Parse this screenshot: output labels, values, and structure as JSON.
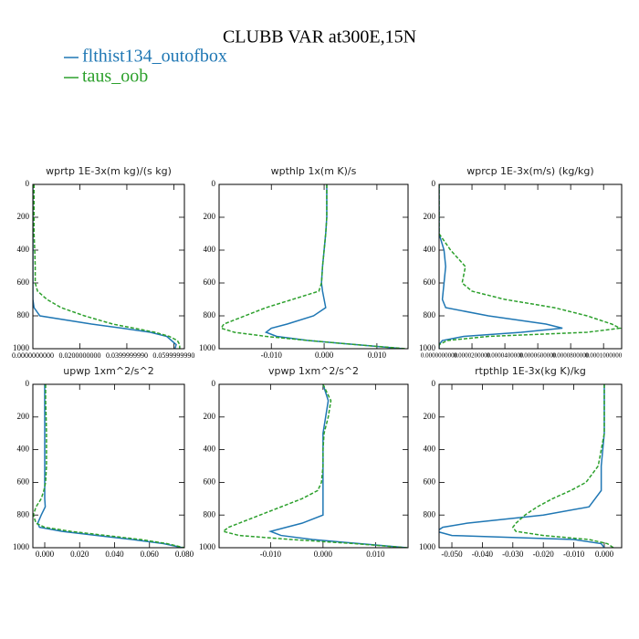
{
  "title": "CLUBB VAR at300E,15N",
  "legend": [
    {
      "name": "flthist134_outofbox",
      "color": "#1f77b4"
    },
    {
      "name": "taus_oob",
      "color": "#2ca02c"
    }
  ],
  "chart_data": [
    {
      "type": "line",
      "title": "wprtp  1E-3x(m kg)/(s kg)",
      "y": [
        0,
        100,
        200,
        300,
        400,
        500,
        600,
        650,
        700,
        750,
        800,
        850,
        875,
        900,
        925,
        950,
        975,
        1000
      ],
      "ylim": [
        0,
        1000
      ],
      "y_inverted": true,
      "yticks": [
        0,
        200,
        400,
        600,
        800,
        1000
      ],
      "xlim": [
        0,
        0.0645
      ],
      "xticks": [
        {
          "value": 0,
          "label": "0.0000000000"
        },
        {
          "value": 0.02,
          "label": "0.0200000000"
        },
        {
          "value": 0.04,
          "label": "0.0399999990"
        },
        {
          "value": 0.06,
          "label": "0.0599999990"
        }
      ],
      "series": [
        {
          "color": "#1f77b4",
          "dashed": false,
          "values": [
            0,
            0,
            0,
            0,
            0,
            0,
            0,
            0,
            0,
            0.0005,
            0.003,
            0.025,
            0.038,
            0.05,
            0.057,
            0.059,
            0.061,
            0.0605
          ]
        },
        {
          "color": "#2ca02c",
          "dashed": true,
          "values": [
            0.0005,
            0.0005,
            0.0005,
            0.0005,
            0.0008,
            0.001,
            0.001,
            0.002,
            0.006,
            0.012,
            0.022,
            0.034,
            0.043,
            0.052,
            0.058,
            0.0615,
            0.0625,
            0.0625
          ]
        }
      ]
    },
    {
      "type": "line",
      "title": "wpthlp  1x(m K)/s",
      "y": [
        0,
        100,
        200,
        300,
        400,
        500,
        600,
        650,
        700,
        750,
        800,
        850,
        875,
        900,
        925,
        950,
        975,
        1000
      ],
      "ylim": [
        0,
        1000
      ],
      "y_inverted": true,
      "yticks": [
        0,
        200,
        400,
        600,
        800,
        1000
      ],
      "xlim": [
        -0.0199,
        0.0159
      ],
      "xticks": [
        {
          "value": -0.01,
          "label": "-0.010"
        },
        {
          "value": 0,
          "label": "0.000"
        },
        {
          "value": 0.01,
          "label": "0.010"
        }
      ],
      "series": [
        {
          "color": "#1f77b4",
          "dashed": false,
          "values": [
            0.0005,
            0.0005,
            0.0005,
            0.0003,
            0,
            -0.0003,
            -0.0005,
            -0.0003,
            0,
            0.0003,
            -0.002,
            -0.007,
            -0.01,
            -0.011,
            -0.009,
            -0.003,
            0.006,
            0.015
          ]
        },
        {
          "color": "#2ca02c",
          "dashed": true,
          "values": [
            0.0005,
            0.0005,
            0.0005,
            0.0003,
            0,
            -0.0003,
            -0.0005,
            -0.001,
            -0.006,
            -0.011,
            -0.015,
            -0.019,
            -0.0195,
            -0.017,
            -0.011,
            -0.003,
            0.006,
            0.0155
          ]
        }
      ]
    },
    {
      "type": "line",
      "title": "wprcp  1E-3x(m/s) (kg/kg)",
      "y": [
        0,
        100,
        200,
        300,
        400,
        500,
        600,
        650,
        700,
        750,
        800,
        850,
        875,
        900,
        925,
        950,
        975,
        1000
      ],
      "ylim": [
        0,
        1000
      ],
      "y_inverted": true,
      "yticks": [
        0,
        200,
        400,
        600,
        800,
        1000
      ],
      "xlim": [
        0,
        0.000111
      ],
      "xticks": [
        {
          "value": 0,
          "label": "0.0000000000"
        },
        {
          "value": 2e-05,
          "label": "0.0000200000"
        },
        {
          "value": 4e-05,
          "label": "0.0000400000"
        },
        {
          "value": 6e-05,
          "label": "0.0000600000"
        },
        {
          "value": 8e-05,
          "label": "0.0000800000"
        },
        {
          "value": 0.0001,
          "label": "0.0001000000"
        }
      ],
      "series": [
        {
          "color": "#1f77b4",
          "dashed": false,
          "values": [
            0,
            0,
            0,
            0,
            3e-06,
            4e-06,
            3e-06,
            2.5e-06,
            2e-06,
            4e-06,
            3e-05,
            6.5e-05,
            7.5e-05,
            5e-05,
            1.5e-05,
            2e-06,
            0,
            0
          ]
        },
        {
          "color": "#2ca02c",
          "dashed": true,
          "values": [
            0,
            0,
            0,
            0,
            7e-06,
            1.6e-05,
            1.4e-05,
            2e-05,
            4e-05,
            7e-05,
            9e-05,
            0.000105,
            0.00011,
            9e-05,
            3e-05,
            5e-06,
            0,
            0
          ]
        }
      ]
    },
    {
      "type": "line",
      "title": "upwp  1xm^2/s^2",
      "y": [
        0,
        100,
        200,
        300,
        400,
        500,
        600,
        650,
        700,
        750,
        800,
        850,
        875,
        900,
        925,
        950,
        975,
        1000
      ],
      "ylim": [
        0,
        1000
      ],
      "y_inverted": true,
      "yticks": [
        0,
        200,
        400,
        600,
        800,
        1000
      ],
      "xlim": [
        -0.0068,
        0.08
      ],
      "xticks": [
        {
          "value": 0,
          "label": "0.000"
        },
        {
          "value": 0.02,
          "label": "0.020"
        },
        {
          "value": 0.04,
          "label": "0.040"
        },
        {
          "value": 0.06,
          "label": "0.060"
        },
        {
          "value": 0.08,
          "label": "0.080"
        }
      ],
      "series": [
        {
          "color": "#1f77b4",
          "dashed": false,
          "values": [
            0,
            0,
            0,
            0,
            0,
            0,
            0,
            0,
            0,
            0.0003,
            -0.002,
            -0.004,
            -0.003,
            0.01,
            0.03,
            0.05,
            0.068,
            0.079
          ]
        },
        {
          "color": "#2ca02c",
          "dashed": true,
          "values": [
            0.0005,
            0.0005,
            0.0008,
            0.001,
            0.001,
            0.001,
            0.0005,
            -0.0005,
            -0.002,
            -0.005,
            -0.0065,
            -0.005,
            0,
            0.015,
            0.035,
            0.055,
            0.07,
            0.08
          ]
        }
      ]
    },
    {
      "type": "line",
      "title": "vpwp  1xm^2/s^2",
      "y": [
        0,
        100,
        200,
        300,
        400,
        500,
        600,
        650,
        700,
        750,
        800,
        850,
        875,
        900,
        925,
        950,
        975,
        1000
      ],
      "ylim": [
        0,
        1000
      ],
      "y_inverted": true,
      "yticks": [
        0,
        200,
        400,
        600,
        800,
        1000
      ],
      "xlim": [
        -0.0198,
        0.0162
      ],
      "xticks": [
        {
          "value": -0.01,
          "label": "-0.010"
        },
        {
          "value": 0,
          "label": "0.000"
        },
        {
          "value": 0.01,
          "label": "0.010"
        }
      ],
      "series": [
        {
          "color": "#1f77b4",
          "dashed": false,
          "values": [
            0,
            0.001,
            0.0005,
            0,
            0,
            0,
            0,
            0,
            0,
            0,
            0,
            -0.004,
            -0.007,
            -0.01,
            -0.008,
            -0.002,
            0.007,
            0.016
          ]
        },
        {
          "color": "#2ca02c",
          "dashed": true,
          "values": [
            0,
            0.0015,
            0.001,
            0.0002,
            0,
            0,
            -0.0003,
            -0.001,
            -0.004,
            -0.008,
            -0.012,
            -0.016,
            -0.018,
            -0.019,
            -0.016,
            -0.006,
            0.006,
            0.016
          ]
        }
      ]
    },
    {
      "type": "line",
      "title": "rtpthlp  1E-3x(kg K)/kg",
      "y": [
        0,
        100,
        200,
        300,
        400,
        500,
        600,
        650,
        700,
        750,
        800,
        850,
        875,
        900,
        925,
        950,
        975,
        1000
      ],
      "ylim": [
        0,
        1000
      ],
      "y_inverted": true,
      "yticks": [
        0,
        200,
        400,
        600,
        800,
        1000
      ],
      "xlim": [
        -0.0542,
        0.0057
      ],
      "xticks": [
        {
          "value": -0.05,
          "label": "-0.050"
        },
        {
          "value": -0.04,
          "label": "-0.040"
        },
        {
          "value": -0.03,
          "label": "-0.030"
        },
        {
          "value": -0.02,
          "label": "-0.020"
        },
        {
          "value": -0.01,
          "label": "-0.010"
        },
        {
          "value": 0,
          "label": "0.000"
        }
      ],
      "series": [
        {
          "color": "#1f77b4",
          "dashed": false,
          "values": [
            0,
            0,
            0,
            0,
            -0.0005,
            -0.001,
            -0.001,
            -0.001,
            -0.003,
            -0.005,
            -0.02,
            -0.045,
            -0.053,
            -0.055,
            -0.05,
            -0.01,
            -0.001,
            0
          ]
        },
        {
          "color": "#2ca02c",
          "dashed": true,
          "values": [
            0,
            0,
            0,
            0,
            -0.001,
            -0.002,
            -0.006,
            -0.011,
            -0.017,
            -0.022,
            -0.026,
            -0.029,
            -0.03,
            -0.029,
            -0.02,
            -0.005,
            0.001,
            0.003
          ]
        }
      ]
    }
  ]
}
